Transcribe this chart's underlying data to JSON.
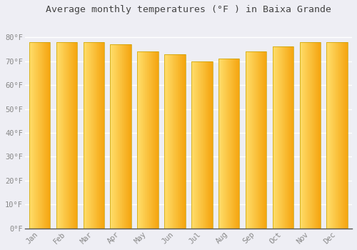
{
  "title": "Average monthly temperatures (°F ) in Baixa Grande",
  "months": [
    "Jan",
    "Feb",
    "Mar",
    "Apr",
    "May",
    "Jun",
    "Jul",
    "Aug",
    "Sep",
    "Oct",
    "Nov",
    "Dec"
  ],
  "values": [
    78,
    78,
    78,
    77,
    74,
    73,
    70,
    71,
    74,
    76,
    78,
    78
  ],
  "bar_color_left": "#FFD966",
  "bar_color_right": "#F5A800",
  "bar_edge_color": "#CCCCCC",
  "background_color": "#EEEEf4",
  "plot_bg_color": "#EEEEf4",
  "grid_color": "#FFFFFF",
  "tick_label_color": "#888888",
  "title_color": "#444444",
  "axis_color": "#333333",
  "ylim": [
    0,
    88
  ],
  "yticks": [
    0,
    10,
    20,
    30,
    40,
    50,
    60,
    70,
    80
  ],
  "title_fontsize": 9.5,
  "tick_fontsize": 7.5
}
